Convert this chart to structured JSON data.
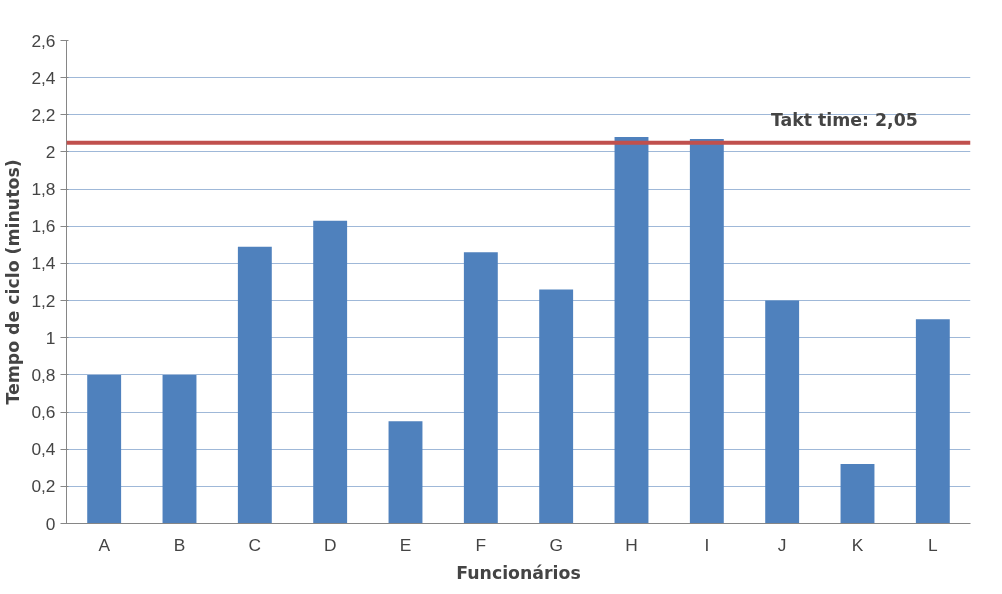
{
  "chart_data": {
    "type": "bar",
    "xlabel": "Funcionários",
    "ylabel": "Tempo de ciclo (minutos)",
    "categories": [
      "A",
      "B",
      "C",
      "D",
      "E",
      "F",
      "G",
      "H",
      "I",
      "J",
      "K",
      "L"
    ],
    "values": [
      0.8,
      0.8,
      1.49,
      1.63,
      0.55,
      1.46,
      1.26,
      2.08,
      2.07,
      1.2,
      0.32,
      1.1
    ],
    "color": "#4f81bd",
    "ylim": [
      0,
      2.6
    ],
    "yticks": [
      0,
      {
        "value": 0.2,
        "label": "0,2"
      },
      {
        "value": 0.4,
        "label": "0,4"
      },
      {
        "value": 0.6,
        "label": "0,6"
      },
      {
        "value": 0.8,
        "label": "0,8"
      },
      1,
      {
        "value": 1.2,
        "label": "1,2"
      },
      {
        "value": 1.4,
        "label": "1,4"
      },
      {
        "value": 1.6,
        "label": "1,6"
      },
      {
        "value": 1.8,
        "label": "1,8"
      },
      2,
      {
        "value": 2.2,
        "label": "2,2"
      },
      {
        "value": 2.4,
        "label": "2,4"
      },
      {
        "value": 2.6,
        "label": "2,6"
      }
    ],
    "grid": "y",
    "ref_lines": [
      {
        "axis": "y",
        "value": 2.05,
        "label": "Takt time: 2,05",
        "color": "#c0504d"
      }
    ]
  }
}
